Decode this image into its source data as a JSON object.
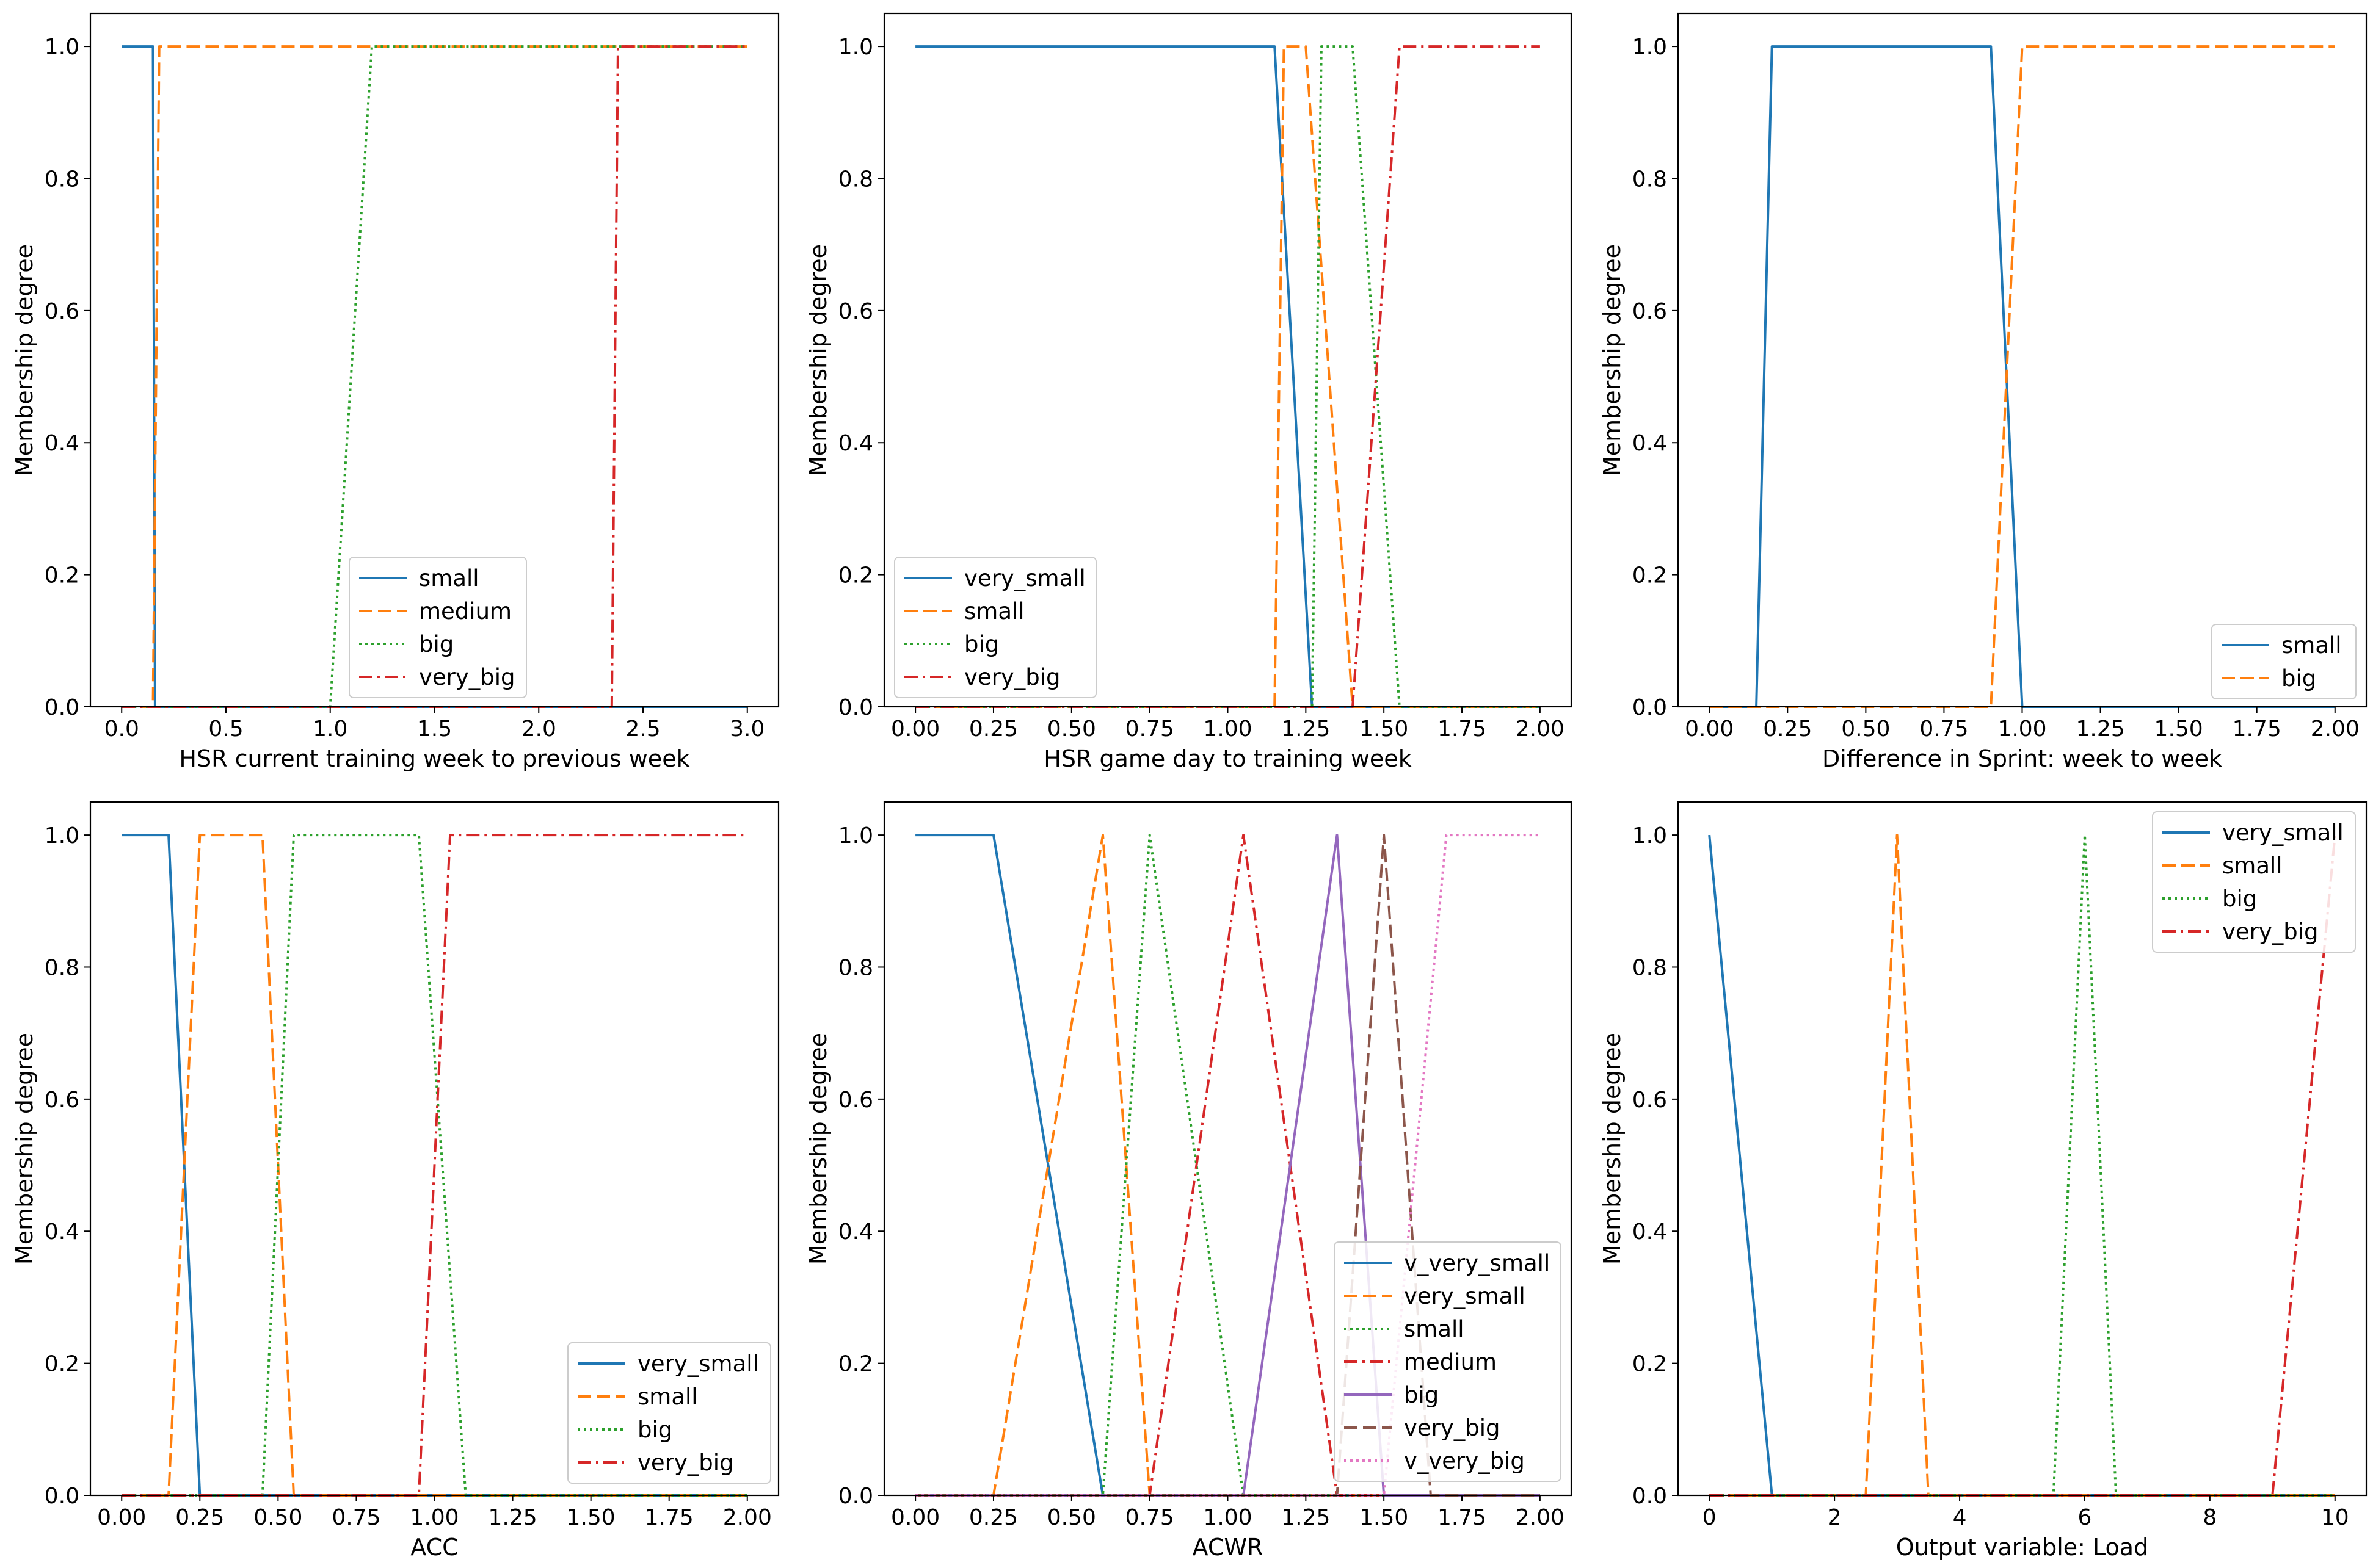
{
  "figure": {
    "colors": {
      "blue": "#1f77b4",
      "orange": "#ff7f0e",
      "green": "#2ca02c",
      "red": "#d62728",
      "purple": "#9467bd",
      "brown": "#8c564b",
      "pink": "#e377c2"
    }
  },
  "chart_data": [
    {
      "type": "line",
      "xlabel": "HSR current training week to previous week",
      "ylabel": "Membership degree",
      "xlim": [
        -0.15,
        3.15
      ],
      "ylim": [
        0,
        1.05
      ],
      "xticks": [
        0.0,
        0.5,
        1.0,
        1.5,
        2.0,
        2.5,
        3.0
      ],
      "xtick_labels": [
        "0.0",
        "0.5",
        "1.0",
        "1.5",
        "2.0",
        "2.5",
        "3.0"
      ],
      "yticks": [
        0.0,
        0.2,
        0.4,
        0.6,
        0.8,
        1.0
      ],
      "ytick_labels": [
        "0.0",
        "0.2",
        "0.4",
        "0.6",
        "0.8",
        "1.0"
      ],
      "legend": "lower-center",
      "series": [
        {
          "name": "small",
          "color": "#1f77b4",
          "style": "solid",
          "x": [
            0,
            0.15,
            0.16,
            3.0
          ],
          "y": [
            1,
            1,
            0,
            0
          ]
        },
        {
          "name": "medium",
          "color": "#ff7f0e",
          "style": "dashed",
          "x": [
            0,
            0.15,
            0.18,
            3.0
          ],
          "y": [
            0,
            0,
            1,
            1
          ]
        },
        {
          "name": "big",
          "color": "#2ca02c",
          "style": "dotted",
          "x": [
            0,
            1.0,
            1.2,
            3.0
          ],
          "y": [
            0,
            0,
            1,
            1
          ]
        },
        {
          "name": "very_big",
          "color": "#d62728",
          "style": "dashdot",
          "x": [
            0,
            2.35,
            2.38,
            3.0
          ],
          "y": [
            0,
            0,
            1,
            1
          ]
        }
      ]
    },
    {
      "type": "line",
      "xlabel": "HSR game day to training week",
      "ylabel": "Membership degree",
      "xlim": [
        -0.1,
        2.1
      ],
      "ylim": [
        0,
        1.05
      ],
      "xticks": [
        0.0,
        0.25,
        0.5,
        0.75,
        1.0,
        1.25,
        1.5,
        1.75,
        2.0
      ],
      "xtick_labels": [
        "0.00",
        "0.25",
        "0.50",
        "0.75",
        "1.00",
        "1.25",
        "1.50",
        "1.75",
        "2.00"
      ],
      "yticks": [
        0.0,
        0.2,
        0.4,
        0.6,
        0.8,
        1.0
      ],
      "ytick_labels": [
        "0.0",
        "0.2",
        "0.4",
        "0.6",
        "0.8",
        "1.0"
      ],
      "legend": "lower-left",
      "series": [
        {
          "name": "very_small",
          "color": "#1f77b4",
          "style": "solid",
          "x": [
            0,
            1.15,
            1.27,
            2.0
          ],
          "y": [
            1,
            1,
            0,
            0
          ]
        },
        {
          "name": "small",
          "color": "#ff7f0e",
          "style": "dashed",
          "x": [
            0,
            1.15,
            1.18,
            1.25,
            1.4,
            2.0
          ],
          "y": [
            0,
            0,
            1,
            1,
            0,
            0
          ]
        },
        {
          "name": "big",
          "color": "#2ca02c",
          "style": "dotted",
          "x": [
            0,
            1.27,
            1.3,
            1.4,
            1.55,
            2.0
          ],
          "y": [
            0,
            0,
            1,
            1,
            0,
            0
          ]
        },
        {
          "name": "very_big",
          "color": "#d62728",
          "style": "dashdot",
          "x": [
            0,
            1.4,
            1.55,
            2.0
          ],
          "y": [
            0,
            0,
            1,
            1
          ]
        }
      ]
    },
    {
      "type": "line",
      "xlabel": "Difference in Sprint: week to week",
      "ylabel": "Membership degree",
      "xlim": [
        -0.1,
        2.1
      ],
      "ylim": [
        0,
        1.05
      ],
      "xticks": [
        0.0,
        0.25,
        0.5,
        0.75,
        1.0,
        1.25,
        1.5,
        1.75,
        2.0
      ],
      "xtick_labels": [
        "0.00",
        "0.25",
        "0.50",
        "0.75",
        "1.00",
        "1.25",
        "1.50",
        "1.75",
        "2.00"
      ],
      "yticks": [
        0.0,
        0.2,
        0.4,
        0.6,
        0.8,
        1.0
      ],
      "ytick_labels": [
        "0.0",
        "0.2",
        "0.4",
        "0.6",
        "0.8",
        "1.0"
      ],
      "legend": "lower-right",
      "series": [
        {
          "name": "small",
          "color": "#1f77b4",
          "style": "solid",
          "x": [
            0,
            0.15,
            0.2,
            0.9,
            1.0,
            2.0
          ],
          "y": [
            0,
            0,
            1,
            1,
            0,
            0
          ]
        },
        {
          "name": "big",
          "color": "#ff7f0e",
          "style": "dashed",
          "x": [
            0,
            0.9,
            1.0,
            2.0
          ],
          "y": [
            0,
            0,
            1,
            1
          ]
        }
      ]
    },
    {
      "type": "line",
      "xlabel": "ACC",
      "ylabel": "Membership degree",
      "xlim": [
        -0.1,
        2.1
      ],
      "ylim": [
        0,
        1.05
      ],
      "xticks": [
        0.0,
        0.25,
        0.5,
        0.75,
        1.0,
        1.25,
        1.5,
        1.75,
        2.0
      ],
      "xtick_labels": [
        "0.00",
        "0.25",
        "0.50",
        "0.75",
        "1.00",
        "1.25",
        "1.50",
        "1.75",
        "2.00"
      ],
      "yticks": [
        0.0,
        0.2,
        0.4,
        0.6,
        0.8,
        1.0
      ],
      "ytick_labels": [
        "0.0",
        "0.2",
        "0.4",
        "0.6",
        "0.8",
        "1.0"
      ],
      "legend": "lower-right",
      "series": [
        {
          "name": "very_small",
          "color": "#1f77b4",
          "style": "solid",
          "x": [
            0,
            0.15,
            0.25,
            2.0
          ],
          "y": [
            1,
            1,
            0,
            0
          ]
        },
        {
          "name": "small",
          "color": "#ff7f0e",
          "style": "dashed",
          "x": [
            0,
            0.15,
            0.25,
            0.45,
            0.55,
            2.0
          ],
          "y": [
            0,
            0,
            1,
            1,
            0,
            0
          ]
        },
        {
          "name": "big",
          "color": "#2ca02c",
          "style": "dotted",
          "x": [
            0,
            0.45,
            0.55,
            0.95,
            1.1,
            2.0
          ],
          "y": [
            0,
            0,
            1,
            1,
            0,
            0
          ]
        },
        {
          "name": "very_big",
          "color": "#d62728",
          "style": "dashdot",
          "x": [
            0,
            0.95,
            1.05,
            2.0
          ],
          "y": [
            0,
            0,
            1,
            1
          ]
        }
      ]
    },
    {
      "type": "line",
      "xlabel": "ACWR",
      "ylabel": "Membership degree",
      "xlim": [
        -0.1,
        2.1
      ],
      "ylim": [
        0,
        1.05
      ],
      "xticks": [
        0.0,
        0.25,
        0.5,
        0.75,
        1.0,
        1.25,
        1.5,
        1.75,
        2.0
      ],
      "xtick_labels": [
        "0.00",
        "0.25",
        "0.50",
        "0.75",
        "1.00",
        "1.25",
        "1.50",
        "1.75",
        "2.00"
      ],
      "yticks": [
        0.0,
        0.2,
        0.4,
        0.6,
        0.8,
        1.0
      ],
      "ytick_labels": [
        "0.0",
        "0.2",
        "0.4",
        "0.6",
        "0.8",
        "1.0"
      ],
      "legend": "lower-right",
      "series": [
        {
          "name": "v_very_small",
          "color": "#1f77b4",
          "style": "solid",
          "x": [
            0,
            0.25,
            0.6,
            2.0
          ],
          "y": [
            1,
            1,
            0,
            0
          ]
        },
        {
          "name": "very_small",
          "color": "#ff7f0e",
          "style": "dashed",
          "x": [
            0,
            0.25,
            0.6,
            0.75,
            2.0
          ],
          "y": [
            0,
            0,
            1,
            0,
            0
          ]
        },
        {
          "name": "small",
          "color": "#2ca02c",
          "style": "dotted",
          "x": [
            0,
            0.6,
            0.75,
            1.05,
            2.0
          ],
          "y": [
            0,
            0,
            1,
            0,
            0
          ]
        },
        {
          "name": "medium",
          "color": "#d62728",
          "style": "dashdot",
          "x": [
            0,
            0.75,
            1.05,
            1.35,
            2.0
          ],
          "y": [
            0,
            0,
            1,
            0,
            0
          ]
        },
        {
          "name": "big",
          "color": "#9467bd",
          "style": "solid",
          "x": [
            0,
            1.05,
            1.35,
            1.5,
            2.0
          ],
          "y": [
            0,
            0,
            1,
            0,
            0
          ]
        },
        {
          "name": "very_big",
          "color": "#8c564b",
          "style": "dashed",
          "x": [
            0,
            1.35,
            1.5,
            1.65,
            2.0
          ],
          "y": [
            0,
            0,
            1,
            0,
            0
          ]
        },
        {
          "name": "v_very_big",
          "color": "#e377c2",
          "style": "dotted",
          "x": [
            0,
            1.5,
            1.7,
            2.0
          ],
          "y": [
            0,
            0,
            1,
            1
          ]
        }
      ]
    },
    {
      "type": "line",
      "xlabel": "Output variable: Load",
      "ylabel": "Membership degree",
      "xlim": [
        -0.5,
        10.5
      ],
      "ylim": [
        0,
        1.05
      ],
      "xticks": [
        0,
        2,
        4,
        6,
        8,
        10
      ],
      "xtick_labels": [
        "0",
        "2",
        "4",
        "6",
        "8",
        "10"
      ],
      "yticks": [
        0.0,
        0.2,
        0.4,
        0.6,
        0.8,
        1.0
      ],
      "ytick_labels": [
        "0.0",
        "0.2",
        "0.4",
        "0.6",
        "0.8",
        "1.0"
      ],
      "legend": "top-right",
      "series": [
        {
          "name": "very_small",
          "color": "#1f77b4",
          "style": "solid",
          "x": [
            0,
            1,
            10
          ],
          "y": [
            1,
            0,
            0
          ]
        },
        {
          "name": "small",
          "color": "#ff7f0e",
          "style": "dashed",
          "x": [
            0,
            2.5,
            3,
            3.5,
            10
          ],
          "y": [
            0,
            0,
            1,
            0,
            0
          ]
        },
        {
          "name": "big",
          "color": "#2ca02c",
          "style": "dotted",
          "x": [
            0,
            5.5,
            6,
            6.5,
            10
          ],
          "y": [
            0,
            0,
            1,
            0,
            0
          ]
        },
        {
          "name": "very_big",
          "color": "#d62728",
          "style": "dashdot",
          "x": [
            0,
            9,
            10
          ],
          "y": [
            0,
            0,
            1
          ]
        }
      ]
    }
  ]
}
